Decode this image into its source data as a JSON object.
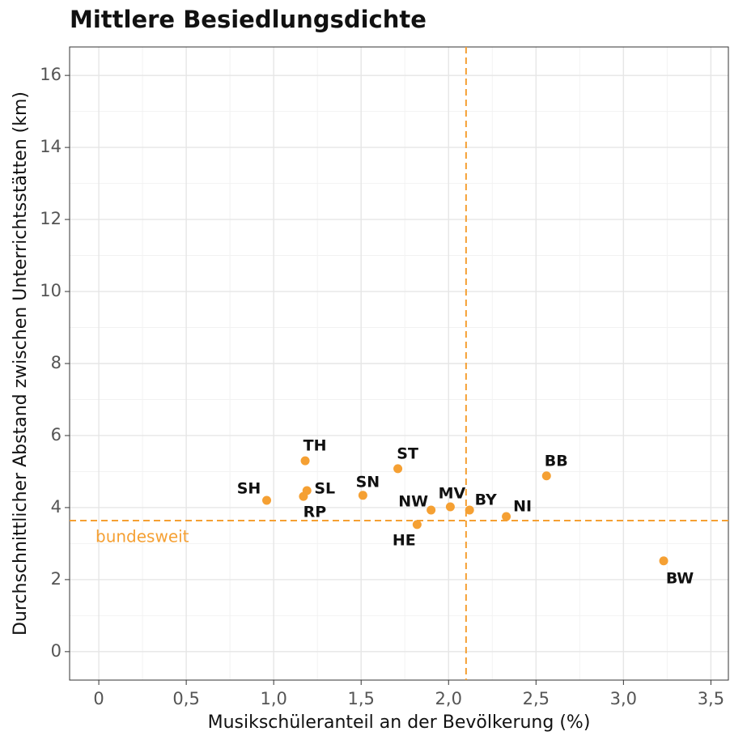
{
  "chart_data": {
    "type": "scatter",
    "title": "Mittlere Besiedlungsdichte",
    "x_label": "Musikschüleranteil an der Bevölkerung (%)",
    "y_label": "Durchschnittlicher Abstand zwischen Unterrichtsstätten (km)",
    "color": "#f5a033",
    "labels": [
      "TH",
      "ST",
      "SH",
      "SL",
      "RP",
      "SN",
      "NW",
      "MV",
      "BY",
      "NI",
      "HE",
      "BB",
      "BW"
    ],
    "x": [
      1.18,
      1.71,
      0.96,
      1.19,
      1.17,
      1.51,
      1.9,
      2.01,
      2.12,
      2.33,
      1.82,
      2.56,
      3.23
    ],
    "values": [
      5.3,
      5.08,
      4.2,
      4.47,
      4.31,
      4.34,
      3.93,
      4.02,
      3.93,
      3.75,
      3.53,
      4.88,
      2.52
    ],
    "reference_x": 2.1,
    "reference_y": 3.64,
    "reference_y_label": "bundesweit",
    "xlim": [
      -0.167,
      3.6
    ],
    "ylim": [
      -0.79,
      16.79
    ],
    "xticks": [
      0,
      {
        "value": 0.5,
        "label": "0,5"
      },
      {
        "value": 1.0,
        "label": "1,0"
      },
      {
        "value": 1.5,
        "label": "1,5"
      },
      {
        "value": 2.0,
        "label": "2,0"
      },
      {
        "value": 2.5,
        "label": "2,5"
      },
      {
        "value": 3.0,
        "label": "3,0"
      },
      {
        "value": 3.5,
        "label": "3,5"
      }
    ],
    "yticks": [
      0,
      2,
      4,
      6,
      8,
      10,
      12,
      14,
      16
    ],
    "grid": true
  }
}
